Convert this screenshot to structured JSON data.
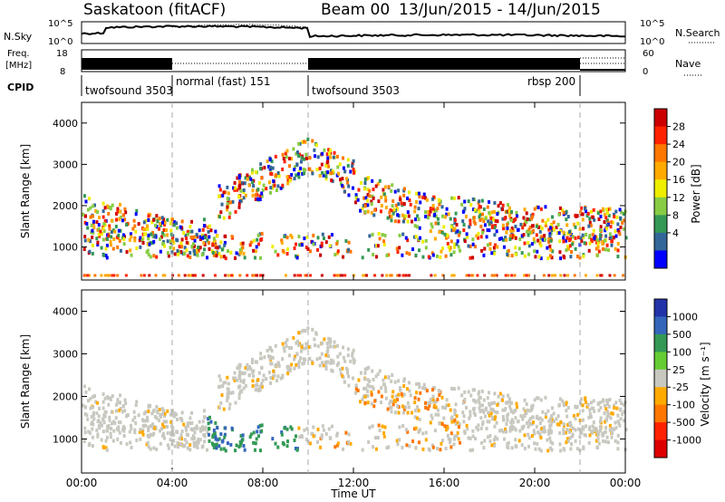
{
  "header": {
    "station": "Saskatoon (fitACF)",
    "beam": "Beam 00",
    "dates": "13/Jun/2015 - 14/Jun/2015"
  },
  "top_panels": {
    "nsky_label": "N.Sky",
    "nsky_tick_hi": "10^5",
    "nsky_tick_lo": "10^0",
    "nsearch_label": "N.Search",
    "nsearch_tick_hi": "10^5",
    "nsearch_tick_lo": "10^0",
    "freq_label_1": "Freq.",
    "freq_label_2": "[MHz]",
    "freq_tick_hi": "18",
    "freq_tick_lo": "8",
    "nave_label": "Nave",
    "nave_tick_hi": "60",
    "nave_tick_lo": "0",
    "cpid_label": "CPID"
  },
  "cpid_segments": [
    {
      "name": "twofsound 3503",
      "start_h": 0.0,
      "end_h": 4.0
    },
    {
      "name": "normal (fast) 151",
      "start_h": 4.0,
      "end_h": 10.0
    },
    {
      "name": "twofsound 3503",
      "start_h": 10.0,
      "end_h": 22.0
    },
    {
      "name": "rbsp 200",
      "start_h": 22.0,
      "end_h": 24.0
    }
  ],
  "chart_data": [
    {
      "type": "heatmap",
      "name": "power",
      "ylabel": "Slant Range [km]",
      "yticks": [
        1000,
        2000,
        3000,
        4000
      ],
      "ylim": [
        200,
        4500
      ],
      "xlim_hours": [
        0,
        24
      ],
      "colorbar_label": "Power [dB]",
      "colorbar_ticks": [
        "28",
        "24",
        "20",
        "16",
        "12",
        "8",
        "4"
      ],
      "colorbar_colors": [
        "#cc0000",
        "#ff2200",
        "#ff7700",
        "#ffaa00",
        "#eeee00",
        "#88cc44",
        "#339955",
        "#336699",
        "#0000ff"
      ]
    },
    {
      "type": "heatmap",
      "name": "velocity",
      "ylabel": "Slant Range [km]",
      "yticks": [
        1000,
        2000,
        3000,
        4000
      ],
      "ylim": [
        200,
        4500
      ],
      "xlim_hours": [
        0,
        24
      ],
      "xlabel": "Time UT",
      "xticks": [
        "00:00",
        "04:00",
        "08:00",
        "12:00",
        "16:00",
        "20:00",
        "00:00"
      ],
      "colorbar_label": "Velocity [m s⁻¹]",
      "colorbar_ticks": [
        "1000",
        "500",
        "100",
        "25",
        "-25",
        "-100",
        "-500",
        "-1000"
      ],
      "colorbar_colors": [
        "#2233aa",
        "#3366bb",
        "#339955",
        "#66cc33",
        "#c8c8c0",
        "#ffaa00",
        "#ff7700",
        "#ff2200",
        "#dd0000"
      ]
    }
  ],
  "dashed_lines_hours": [
    4,
    10,
    22
  ]
}
